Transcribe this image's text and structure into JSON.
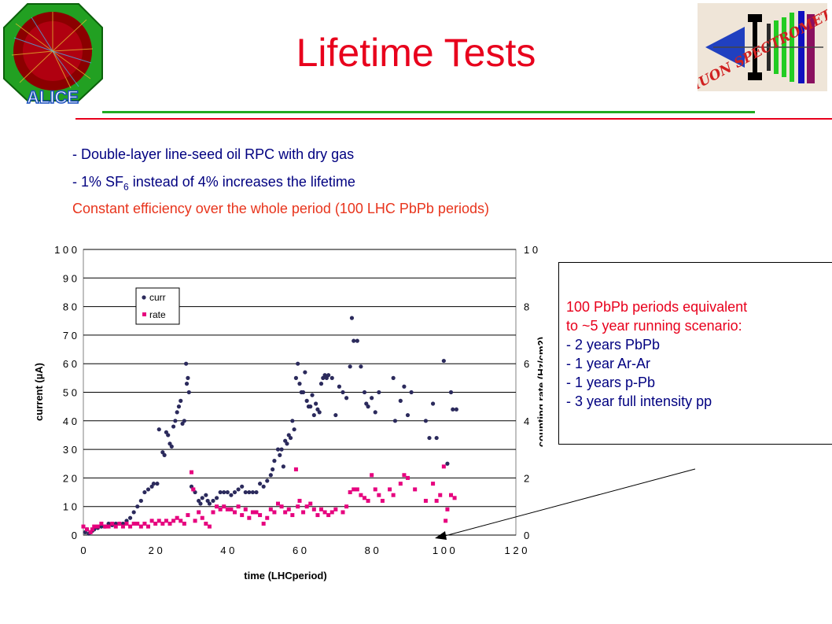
{
  "slide": {
    "title": "Lifetime Tests",
    "bullet_1": "- Double-layer line-seed oil RPC with dry gas",
    "bullet_2_pre": "- 1% SF",
    "bullet_2_sub": "6",
    "bullet_2_post": " instead of 4% increases the lifetime",
    "bullet_3": "Constant efficiency over the whole period  (100 LHC PbPb periods)",
    "logo_left_text": "ALICE",
    "logo_right_text": "DiMUON SPECTROMETER"
  },
  "info": {
    "line_1": "100 PbPb periods equivalent",
    "line_2": "to ~5 year running scenario:",
    "items": [
      "-  2 years PbPb",
      "-  1 year Ar-Ar",
      "-  1 years p-Pb",
      "-  3 year full intensity pp"
    ]
  },
  "colors": {
    "title": "#e8001c",
    "curr": "#2b2a5c",
    "rate": "#e6007e",
    "bullets": "#000080",
    "highlight": "#e8341c"
  },
  "chart_data": {
    "type": "scatter",
    "xlabel": "time (LHCperiod)",
    "ylabel": "current (µA)",
    "ylabel_right": "counting rate (Hz/cm2)",
    "xlim": [
      0,
      120
    ],
    "ylim": [
      0,
      100
    ],
    "ylim_right": [
      0,
      10
    ],
    "x_ticks": [
      "0",
      "2 0",
      "4 0",
      "6 0",
      "8 0",
      "1 0 0",
      "1 2 0"
    ],
    "y_ticks": [
      "0",
      "1 0",
      "2 0",
      "3 0",
      "4 0",
      "5 0",
      "6 0",
      "7 0",
      "8 0",
      "9 0",
      "1 0 0"
    ],
    "y_ticks_right": [
      "0",
      "2",
      "4",
      "6",
      "8",
      "1 0"
    ],
    "grid": "horizontal",
    "legend_position": "top-left",
    "series": [
      {
        "name": "curr",
        "axis": "left",
        "points": [
          [
            0.5,
            1
          ],
          [
            1,
            2
          ],
          [
            1.5,
            0.5
          ],
          [
            2,
            1
          ],
          [
            2.5,
            1.5
          ],
          [
            3,
            2
          ],
          [
            4,
            2.5
          ],
          [
            5,
            3
          ],
          [
            6,
            3
          ],
          [
            7,
            4
          ],
          [
            8,
            3.5
          ],
          [
            9,
            4
          ],
          [
            10,
            4
          ],
          [
            11,
            4
          ],
          [
            12,
            5
          ],
          [
            13,
            6
          ],
          [
            14,
            8
          ],
          [
            15,
            10
          ],
          [
            16,
            12
          ],
          [
            17,
            15
          ],
          [
            18,
            16
          ],
          [
            19,
            17
          ],
          [
            19.5,
            18
          ],
          [
            20.5,
            18
          ],
          [
            21,
            37
          ],
          [
            22,
            29
          ],
          [
            22.5,
            28
          ],
          [
            23,
            36
          ],
          [
            23.5,
            35
          ],
          [
            24,
            32
          ],
          [
            24.5,
            31
          ],
          [
            25,
            38
          ],
          [
            25.5,
            40
          ],
          [
            26,
            43
          ],
          [
            26.5,
            45
          ],
          [
            27,
            47
          ],
          [
            27.5,
            39
          ],
          [
            28,
            40
          ],
          [
            28.5,
            60
          ],
          [
            28.7,
            53
          ],
          [
            29,
            55
          ],
          [
            29.3,
            50
          ],
          [
            30,
            17
          ],
          [
            30.5,
            16
          ],
          [
            31,
            15
          ],
          [
            32,
            12
          ],
          [
            32.5,
            11
          ],
          [
            33,
            13
          ],
          [
            34,
            14
          ],
          [
            34.5,
            12
          ],
          [
            35,
            11
          ],
          [
            36,
            12
          ],
          [
            37,
            13
          ],
          [
            38,
            15
          ],
          [
            39,
            15
          ],
          [
            40,
            15
          ],
          [
            41,
            14
          ],
          [
            42,
            15
          ],
          [
            43,
            16
          ],
          [
            44,
            17
          ],
          [
            45,
            15
          ],
          [
            46,
            15
          ],
          [
            47,
            15
          ],
          [
            48,
            15
          ],
          [
            49,
            18
          ],
          [
            50,
            17
          ],
          [
            51,
            19
          ],
          [
            52,
            21
          ],
          [
            52.5,
            23
          ],
          [
            53,
            26
          ],
          [
            54,
            30
          ],
          [
            54.5,
            28
          ],
          [
            55,
            30
          ],
          [
            55.5,
            24
          ],
          [
            56,
            33
          ],
          [
            56.5,
            32
          ],
          [
            57,
            35
          ],
          [
            57.5,
            34
          ],
          [
            58,
            40
          ],
          [
            58.5,
            37
          ],
          [
            59,
            55
          ],
          [
            59.5,
            60
          ],
          [
            60,
            53
          ],
          [
            60.5,
            50
          ],
          [
            61,
            50
          ],
          [
            61.5,
            57
          ],
          [
            62,
            47
          ],
          [
            62.5,
            45
          ],
          [
            63,
            45
          ],
          [
            63.5,
            49
          ],
          [
            64,
            42
          ],
          [
            64.5,
            46
          ],
          [
            65,
            44
          ],
          [
            65.5,
            43
          ],
          [
            66,
            53
          ],
          [
            66.5,
            55
          ],
          [
            67,
            56
          ],
          [
            67.5,
            55
          ],
          [
            68,
            56
          ],
          [
            69,
            55
          ],
          [
            70,
            42
          ],
          [
            71,
            52
          ],
          [
            72,
            50
          ],
          [
            73,
            48
          ],
          [
            74,
            59
          ],
          [
            74.5,
            76
          ],
          [
            75,
            68
          ],
          [
            76,
            68
          ],
          [
            77,
            59
          ],
          [
            78,
            50
          ],
          [
            78.5,
            46
          ],
          [
            79,
            45
          ],
          [
            80,
            48
          ],
          [
            81,
            43
          ],
          [
            82,
            50
          ],
          [
            86,
            55
          ],
          [
            86.5,
            40
          ],
          [
            88,
            47
          ],
          [
            89,
            52
          ],
          [
            90,
            42
          ],
          [
            91,
            50
          ],
          [
            95,
            40
          ],
          [
            96,
            34
          ],
          [
            97,
            46
          ],
          [
            98,
            34
          ],
          [
            100,
            61
          ],
          [
            101,
            25
          ],
          [
            102,
            50
          ],
          [
            102.5,
            44
          ],
          [
            103.5,
            44
          ]
        ]
      },
      {
        "name": "rate",
        "axis": "right",
        "points": [
          [
            0,
            0.3
          ],
          [
            1,
            0.2
          ],
          [
            2,
            0.1
          ],
          [
            2.5,
            0.2
          ],
          [
            3,
            0.3
          ],
          [
            4,
            0.3
          ],
          [
            5,
            0.4
          ],
          [
            6,
            0.3
          ],
          [
            7,
            0.3
          ],
          [
            8,
            0.4
          ],
          [
            9,
            0.3
          ],
          [
            10,
            0.4
          ],
          [
            11,
            0.3
          ],
          [
            12,
            0.4
          ],
          [
            13,
            0.3
          ],
          [
            14,
            0.4
          ],
          [
            15,
            0.4
          ],
          [
            16,
            0.3
          ],
          [
            17,
            0.4
          ],
          [
            18,
            0.3
          ],
          [
            19,
            0.5
          ],
          [
            20,
            0.4
          ],
          [
            21,
            0.5
          ],
          [
            22,
            0.4
          ],
          [
            23,
            0.5
          ],
          [
            24,
            0.4
          ],
          [
            25,
            0.5
          ],
          [
            26,
            0.6
          ],
          [
            27,
            0.5
          ],
          [
            28,
            0.4
          ],
          [
            29,
            0.7
          ],
          [
            30,
            2.2
          ],
          [
            30.5,
            1.6
          ],
          [
            31,
            0.5
          ],
          [
            32,
            0.8
          ],
          [
            33,
            0.6
          ],
          [
            34,
            0.4
          ],
          [
            35,
            0.3
          ],
          [
            36,
            0.8
          ],
          [
            37,
            1.0
          ],
          [
            38,
            0.9
          ],
          [
            39,
            1.0
          ],
          [
            40,
            0.9
          ],
          [
            41,
            0.9
          ],
          [
            42,
            0.8
          ],
          [
            43,
            1.0
          ],
          [
            44,
            0.7
          ],
          [
            45,
            0.9
          ],
          [
            46,
            0.6
          ],
          [
            47,
            0.8
          ],
          [
            48,
            0.8
          ],
          [
            49,
            0.7
          ],
          [
            50,
            0.4
          ],
          [
            51,
            0.6
          ],
          [
            52,
            0.9
          ],
          [
            53,
            0.8
          ],
          [
            54,
            1.1
          ],
          [
            55,
            1.0
          ],
          [
            56,
            0.8
          ],
          [
            57,
            0.9
          ],
          [
            58,
            0.7
          ],
          [
            59,
            2.3
          ],
          [
            59.5,
            1.0
          ],
          [
            60,
            1.2
          ],
          [
            61,
            0.8
          ],
          [
            62,
            1.0
          ],
          [
            63,
            1.1
          ],
          [
            64,
            0.9
          ],
          [
            65,
            0.7
          ],
          [
            66,
            0.9
          ],
          [
            67,
            0.8
          ],
          [
            68,
            0.7
          ],
          [
            69,
            0.8
          ],
          [
            70,
            0.9
          ],
          [
            72,
            0.8
          ],
          [
            73,
            1.0
          ],
          [
            74,
            1.5
          ],
          [
            75,
            1.6
          ],
          [
            76,
            1.6
          ],
          [
            77,
            1.4
          ],
          [
            78,
            1.3
          ],
          [
            79,
            1.2
          ],
          [
            80,
            2.1
          ],
          [
            81,
            1.6
          ],
          [
            82,
            1.4
          ],
          [
            83,
            1.2
          ],
          [
            85,
            1.6
          ],
          [
            86,
            1.4
          ],
          [
            88,
            1.8
          ],
          [
            89,
            2.1
          ],
          [
            90,
            2.0
          ],
          [
            92,
            1.6
          ],
          [
            95,
            1.2
          ],
          [
            97,
            1.8
          ],
          [
            98,
            1.2
          ],
          [
            99,
            1.4
          ],
          [
            100,
            2.4
          ],
          [
            100.5,
            0.5
          ],
          [
            101,
            0.9
          ],
          [
            102,
            1.4
          ],
          [
            103,
            1.3
          ]
        ]
      }
    ]
  }
}
